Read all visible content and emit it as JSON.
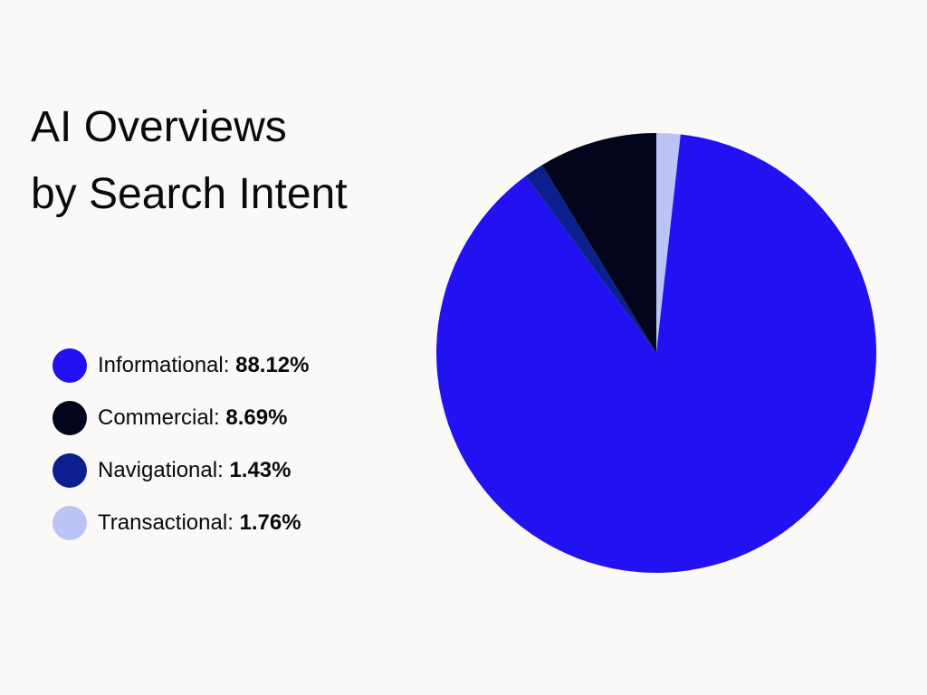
{
  "chart_data": {
    "type": "pie",
    "title_lines": [
      "AI Overviews",
      "by Search Intent"
    ],
    "slices": [
      {
        "label": "Informational",
        "value": 88.12,
        "display": "88.12%",
        "color": "#2211f0"
      },
      {
        "label": "Commercial",
        "value": 8.69,
        "display": "8.69%",
        "color": "#03051c"
      },
      {
        "label": "Navigational",
        "value": 1.43,
        "display": "1.43%",
        "color": "#0c1f8f"
      },
      {
        "label": "Transactional",
        "value": 1.76,
        "display": "1.76%",
        "color": "#bcc4f7"
      }
    ],
    "legend_position": "left",
    "start_angle_deg": 0,
    "direction": "clockwise",
    "slice_order": [
      "Transactional",
      "Informational",
      "Navigational",
      "Commercial"
    ]
  }
}
